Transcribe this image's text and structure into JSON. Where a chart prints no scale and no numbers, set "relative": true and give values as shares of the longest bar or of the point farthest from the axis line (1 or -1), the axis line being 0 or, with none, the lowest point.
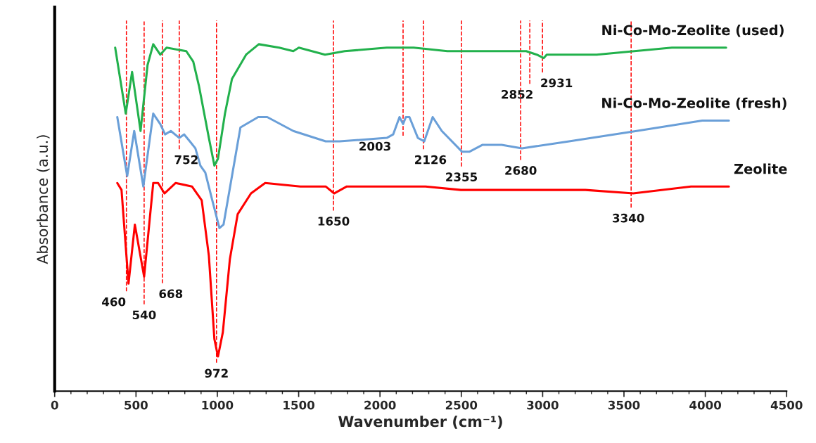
{
  "chart_data": {
    "type": "line",
    "relative": true,
    "xlabel": "Wavenumber (cm⁻¹)",
    "ylabel": "Absorbance (a.u.)",
    "xlim": [
      0,
      4500
    ],
    "xticks": [
      0,
      500,
      1000,
      1500,
      2000,
      2500,
      3000,
      3500,
      4000,
      4500
    ],
    "grid": false,
    "legend": false,
    "marker": "none",
    "line_style": "solid",
    "series": [
      {
        "name": "Ni-Co-Mo-Zeolite (used)",
        "color": "#22b14c",
        "x": [
          372,
          437,
          476,
          528,
          571,
          606,
          649,
          688,
          809,
          852,
          887,
          948,
          982,
          1004,
          1047,
          1090,
          1177,
          1255,
          1380,
          1467,
          1501,
          1662,
          1783,
          2042,
          2142,
          2207,
          2414,
          2899,
          2964,
          3007,
          3025,
          3332,
          3795,
          4128
        ],
        "values": [
          0.99,
          0.8,
          0.92,
          0.75,
          0.94,
          1.0,
          0.97,
          0.99,
          0.98,
          0.95,
          0.88,
          0.73,
          0.65,
          0.67,
          0.8,
          0.9,
          0.97,
          1.0,
          0.99,
          0.98,
          0.99,
          0.97,
          0.98,
          0.99,
          0.99,
          0.99,
          0.98,
          0.98,
          0.97,
          0.96,
          0.97,
          0.97,
          0.99,
          0.99
        ]
      },
      {
        "name": "Ni-Co-Mo-Zeolite (fresh)",
        "color": "#6a9fd8",
        "x": [
          385,
          446,
          489,
          545,
          606,
          649,
          679,
          714,
          766,
          796,
          831,
          865,
          896,
          926,
          969,
          1013,
          1038,
          1090,
          1142,
          1251,
          1307,
          1467,
          1666,
          1752,
          2042,
          2081,
          2120,
          2142,
          2159,
          2181,
          2233,
          2272,
          2324,
          2380,
          2505,
          2549,
          2631,
          2748,
          2873,
          3163,
          3578,
          3981,
          4145
        ],
        "values": [
          0.79,
          0.62,
          0.75,
          0.59,
          0.8,
          0.77,
          0.74,
          0.75,
          0.73,
          0.74,
          0.72,
          0.7,
          0.65,
          0.63,
          0.55,
          0.47,
          0.48,
          0.62,
          0.76,
          0.79,
          0.79,
          0.75,
          0.72,
          0.72,
          0.73,
          0.74,
          0.79,
          0.77,
          0.79,
          0.79,
          0.73,
          0.72,
          0.79,
          0.75,
          0.69,
          0.69,
          0.71,
          0.71,
          0.7,
          0.72,
          0.75,
          0.78,
          0.78
        ]
      },
      {
        "name": "Zeolite",
        "color": "#ff0000",
        "x": [
          385,
          411,
          454,
          493,
          550,
          606,
          636,
          675,
          744,
          844,
          904,
          948,
          982,
          1004,
          1034,
          1077,
          1125,
          1207,
          1294,
          1510,
          1666,
          1718,
          1796,
          2042,
          2280,
          2497,
          2999,
          3263,
          3557,
          3912,
          4145
        ],
        "values": [
          0.6,
          0.58,
          0.31,
          0.48,
          0.33,
          0.6,
          0.6,
          0.57,
          0.6,
          0.59,
          0.55,
          0.39,
          0.15,
          0.1,
          0.17,
          0.38,
          0.51,
          0.57,
          0.6,
          0.59,
          0.59,
          0.57,
          0.59,
          0.59,
          0.59,
          0.58,
          0.58,
          0.58,
          0.57,
          0.59,
          0.59
        ]
      }
    ],
    "ref_lines": [
      {
        "axis": "x",
        "value": 441,
        "color": "#ff0000",
        "line_style": "dashed"
      },
      {
        "axis": "x",
        "value": 550,
        "color": "#ff0000",
        "line_style": "dashed"
      },
      {
        "axis": "x",
        "value": 662,
        "color": "#ff0000",
        "line_style": "dashed"
      },
      {
        "axis": "x",
        "value": 766,
        "color": "#ff0000",
        "line_style": "dashed"
      },
      {
        "axis": "x",
        "value": 995,
        "color": "#ff0000",
        "line_style": "dashed"
      },
      {
        "axis": "x",
        "value": 1714,
        "color": "#ff0000",
        "line_style": "dashed"
      },
      {
        "axis": "x",
        "value": 2142,
        "color": "#ff0000",
        "line_style": "dashed"
      },
      {
        "axis": "x",
        "value": 2267,
        "color": "#ff0000",
        "line_style": "dashed"
      },
      {
        "axis": "x",
        "value": 2501,
        "color": "#ff0000",
        "line_style": "dashed"
      },
      {
        "axis": "x",
        "value": 2865,
        "color": "#ff0000",
        "line_style": "dashed"
      },
      {
        "axis": "x",
        "value": 2921,
        "color": "#ff0000",
        "line_style": "dashed"
      },
      {
        "axis": "x",
        "value": 2999,
        "color": "#ff0000",
        "line_style": "dashed"
      },
      {
        "axis": "x",
        "value": 3544,
        "color": "#ff0000",
        "line_style": "dashed"
      }
    ],
    "annotations": [
      "460",
      "540",
      "668",
      "752",
      "972",
      "1650",
      "2003",
      "2126",
      "2355",
      "2680",
      "2852",
      "2931",
      "3340"
    ]
  }
}
